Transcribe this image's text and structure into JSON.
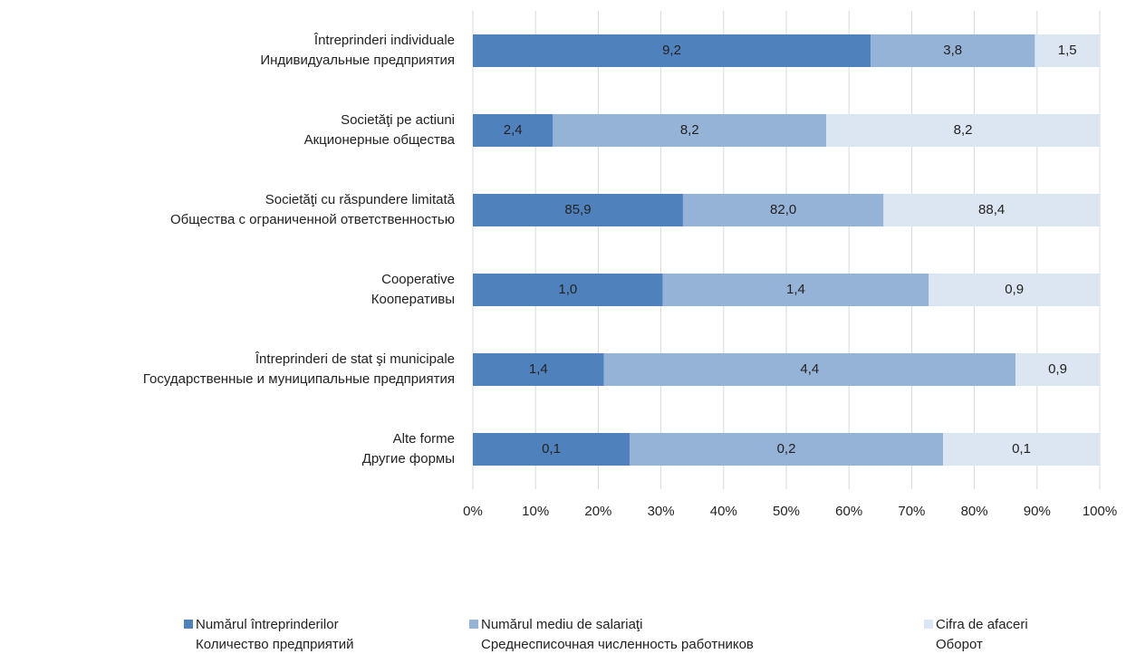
{
  "chart_data": {
    "type": "bar",
    "orientation": "horizontal",
    "stack": "percent",
    "categories": [
      [
        "Întreprinderi individuale",
        "Индивидуальные предприятия"
      ],
      [
        "Societăţi pe actiuni",
        "Акционерные общества"
      ],
      [
        "Societăţi cu răspundere limitată",
        "Общества с ограниченной ответственностью"
      ],
      [
        "Cooperative",
        "Кооперативы"
      ],
      [
        "Întreprinderi de stat şi municipale",
        "Государственные и муниципальные предприятия"
      ],
      [
        "Alte forme",
        "Другие формы"
      ]
    ],
    "series": [
      {
        "name": [
          "Numărul  întreprinderilor",
          "Количество предприятий"
        ],
        "color": "#4f81bd",
        "values": [
          9.2,
          2.4,
          85.9,
          1.0,
          1.4,
          0.1
        ],
        "value_labels": [
          "9,2",
          "2,4",
          "85,9",
          "1,0",
          "1,4",
          "0,1"
        ]
      },
      {
        "name": [
          "Numărul mediu de salariaţi",
          "Среднесписочная численность работников"
        ],
        "color": "#95b3d7",
        "values": [
          3.8,
          8.2,
          82.0,
          1.4,
          4.4,
          0.2
        ],
        "value_labels": [
          "3,8",
          "8,2",
          "82,0",
          "1,4",
          "4,4",
          "0,2"
        ]
      },
      {
        "name": [
          "Cifra de afaceri",
          "Оборот"
        ],
        "color": "#dce6f2",
        "values": [
          1.5,
          8.2,
          88.4,
          0.9,
          0.9,
          0.1
        ],
        "value_labels": [
          "1,5",
          "8,2",
          "88,4",
          "0,9",
          "0,9",
          "0,1"
        ]
      }
    ],
    "xlim": [
      0,
      100
    ],
    "xticks": [
      {
        "value": 0,
        "label": "0%"
      },
      {
        "value": 10,
        "label": "10%"
      },
      {
        "value": 20,
        "label": "20%"
      },
      {
        "value": 30,
        "label": "30%"
      },
      {
        "value": 40,
        "label": "40%"
      },
      {
        "value": 50,
        "label": "50%"
      },
      {
        "value": 60,
        "label": "60%"
      },
      {
        "value": 70,
        "label": "70%"
      },
      {
        "value": 80,
        "label": "80%"
      },
      {
        "value": 90,
        "label": "90%"
      },
      {
        "value": 100,
        "label": "100%"
      }
    ],
    "grid": true,
    "legend": "bottom"
  }
}
